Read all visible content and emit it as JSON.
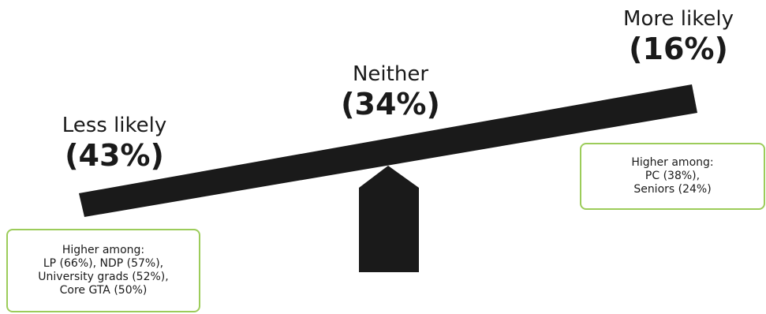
{
  "seesaw": {
    "less_likely": {
      "label": "Less likely",
      "percent": "(43%)"
    },
    "neither": {
      "label": "Neither",
      "percent": "(34%)"
    },
    "more_likely": {
      "label": "More likely",
      "percent": "(16%)"
    }
  },
  "notes": {
    "less_likely": {
      "lines": [
        "Higher among:",
        "LP (66%), NDP (57%),",
        "University grads (52%),",
        "Core GTA (50%)"
      ]
    },
    "more_likely": {
      "lines": [
        "Higher among:",
        "PC (38%),",
        "Seniors (24%)"
      ]
    }
  },
  "colors": {
    "beam": "#1a1a1a",
    "note_border": "#9ccc5a",
    "text": "#1a1a1a"
  }
}
